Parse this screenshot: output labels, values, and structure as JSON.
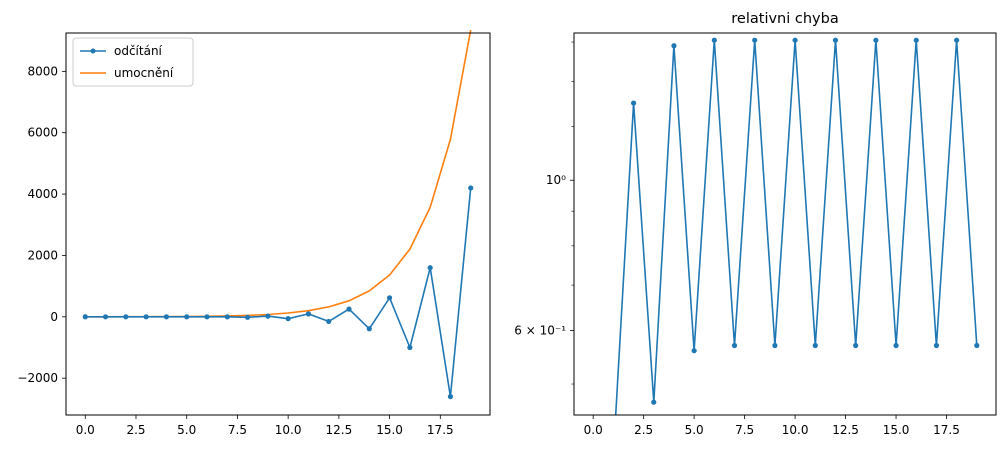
{
  "chart_data": [
    {
      "type": "line",
      "title": "",
      "xlabel": "",
      "ylabel": "",
      "xlim": [
        -0.95,
        19.95
      ],
      "ylim": [
        -3200,
        9250
      ],
      "x": [
        0,
        1,
        2,
        3,
        4,
        5,
        6,
        7,
        8,
        9,
        10,
        11,
        12,
        13,
        14,
        15,
        16,
        17,
        18,
        19
      ],
      "xticks": [
        "0.0",
        "2.5",
        "5.0",
        "7.5",
        "10.0",
        "12.5",
        "15.0",
        "17.5"
      ],
      "xtick_values": [
        0,
        2.5,
        5,
        7.5,
        10,
        12.5,
        15,
        17.5
      ],
      "yticks": [
        "−2000",
        "0",
        "2000",
        "4000",
        "6000",
        "8000"
      ],
      "ytick_values": [
        -2000,
        0,
        2000,
        4000,
        6000,
        8000
      ],
      "legend_position": "top-left",
      "grid": false,
      "series": [
        {
          "name": "odčítání",
          "color": "#1f77b4",
          "marker": "dot",
          "values": [
            1,
            0.6,
            0.4,
            0.3,
            0.2,
            0.1,
            0,
            -1,
            -17,
            22,
            -60,
            95,
            -150,
            250,
            -390,
            620,
            -1000,
            1600,
            -2600,
            4200
          ]
        },
        {
          "name": "umocnění",
          "color": "#ff7f0e",
          "marker": "none",
          "values": [
            1,
            1.618,
            2.618,
            4.236,
            6.854,
            11.09,
            17.94,
            29.03,
            46.98,
            76.01,
            123.0,
            199.0,
            322.0,
            521.0,
            843.0,
            1364,
            2207,
            3571,
            5778,
            9349
          ]
        }
      ]
    },
    {
      "type": "line",
      "title": "relativni chyba",
      "xlabel": "",
      "ylabel": "",
      "yscale": "log",
      "xlim": [
        -0.95,
        19.95
      ],
      "ylim": [
        0.45,
        1.65
      ],
      "x": [
        0,
        1,
        2,
        3,
        4,
        5,
        6,
        7,
        8,
        9,
        10,
        11,
        12,
        13,
        14,
        15,
        16,
        17,
        18,
        19
      ],
      "xticks": [
        "0.0",
        "2.5",
        "5.0",
        "7.5",
        "10.0",
        "12.5",
        "15.0",
        "17.5"
      ],
      "xtick_values": [
        0,
        2.5,
        5,
        7.5,
        10,
        12.5,
        15,
        17.5
      ],
      "yticks": [
        "10⁰",
        "6 × 10⁻¹"
      ],
      "ytick_values": [
        1.0,
        0.6
      ],
      "grid": false,
      "series": [
        {
          "color": "#1f77b4",
          "marker": "dot",
          "values": [
            0,
            0,
            1.3,
            0.47,
            1.58,
            0.56,
            1.61,
            0.57,
            1.61,
            0.57,
            1.61,
            0.57,
            1.61,
            0.57,
            1.61,
            0.57,
            1.61,
            0.57,
            1.61,
            0.57
          ]
        }
      ]
    }
  ]
}
